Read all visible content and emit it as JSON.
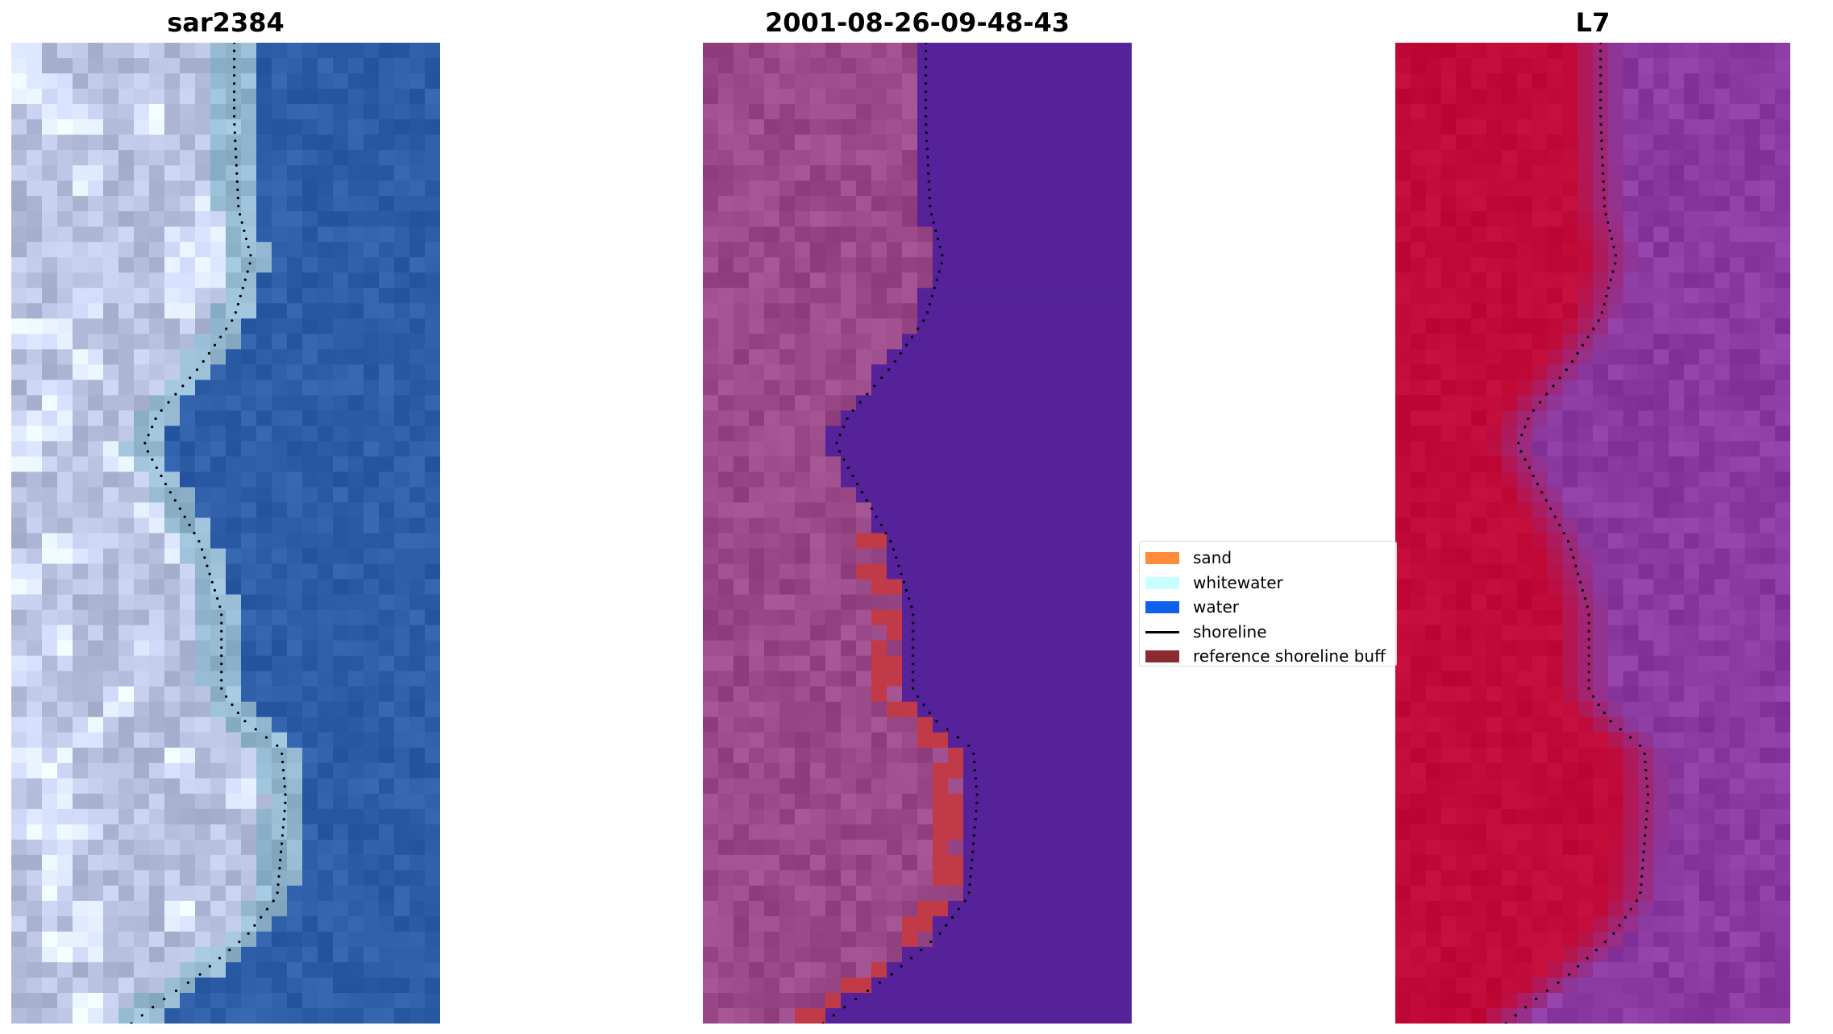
{
  "panels": [
    {
      "title": "sar2384",
      "kind": "rgb"
    },
    {
      "title": "2001-08-26-09-48-43",
      "kind": "classified"
    },
    {
      "title": "L7",
      "kind": "mndwi"
    }
  ],
  "legend": {
    "items": [
      {
        "label": "sand",
        "color": "#ff8c3a",
        "type": "patch"
      },
      {
        "label": "whitewater",
        "color": "#c8ffff",
        "type": "patch"
      },
      {
        "label": "water",
        "color": "#1060ee",
        "type": "patch"
      },
      {
        "label": "shoreline",
        "color": "#000000",
        "type": "line"
      },
      {
        "label": "reference shoreline buff",
        "color": "#8b2a30",
        "type": "patch"
      }
    ]
  },
  "colors": {
    "rgb_water": "#2f5ea8",
    "rgb_land": "#b8c2e0",
    "classified_land": "#9a4a88",
    "classified_water": "#55229a",
    "classified_buffer": "#c03a48",
    "mndwi_land": "#c10a38",
    "mndwi_water": "#8a3aa0",
    "shoreline": "#000000"
  }
}
